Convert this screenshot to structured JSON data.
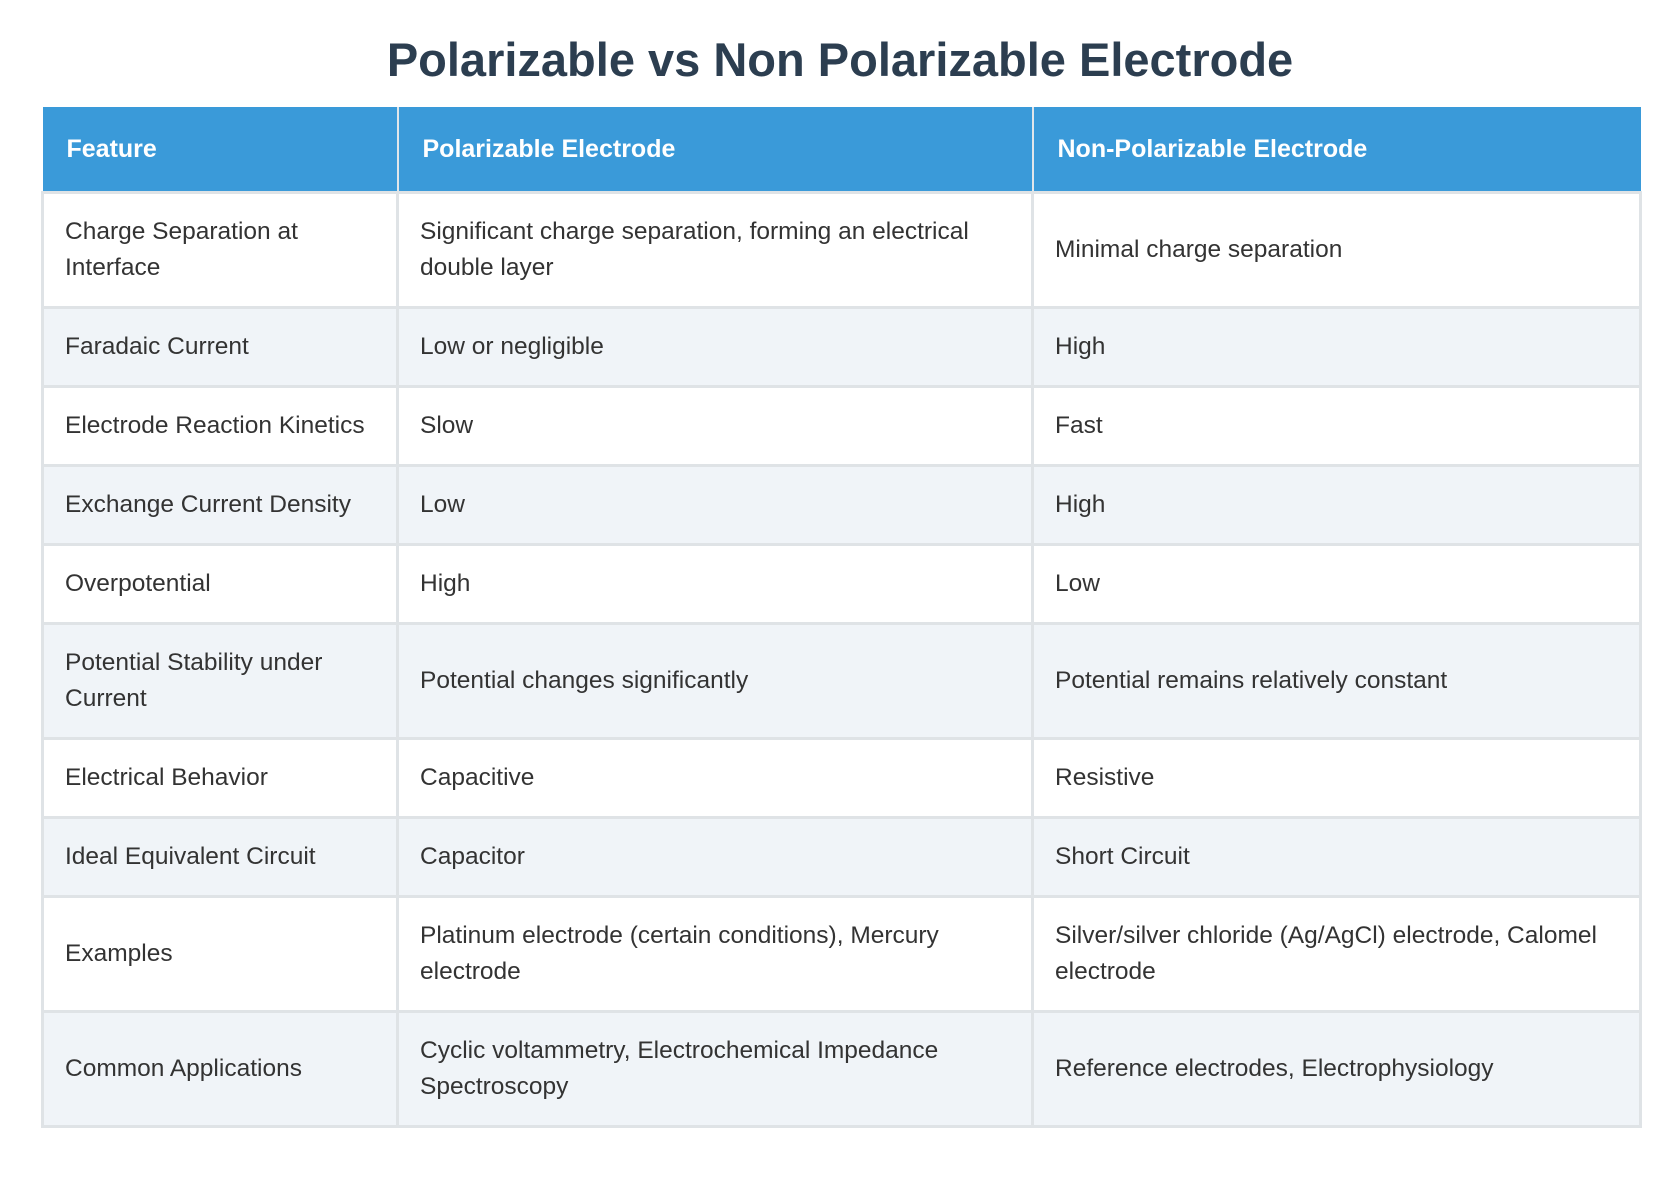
{
  "title": "Polarizable vs Non Polarizable Electrode",
  "table": {
    "headers": [
      "Feature",
      "Polarizable Electrode",
      "Non-Polarizable Electrode"
    ],
    "rows": [
      [
        "Charge Separation at Interface",
        "Significant charge separation, forming an electrical double layer",
        "Minimal charge separation"
      ],
      [
        "Faradaic Current",
        "Low or negligible",
        "High"
      ],
      [
        "Electrode Reaction Kinetics",
        "Slow",
        "Fast"
      ],
      [
        "Exchange Current Density",
        "Low",
        "High"
      ],
      [
        "Overpotential",
        "High",
        "Low"
      ],
      [
        "Potential Stability under Current",
        "Potential changes significantly",
        "Potential remains relatively constant"
      ],
      [
        "Electrical Behavior",
        "Capacitive",
        "Resistive"
      ],
      [
        "Ideal Equivalent Circuit",
        "Capacitor",
        "Short Circuit"
      ],
      [
        "Examples",
        "Platinum electrode (certain conditions), Mercury electrode",
        "Silver/silver chloride (Ag/AgCl) electrode, Calomel electrode"
      ],
      [
        "Common Applications",
        "Cyclic voltammetry, Electrochemical Impedance Spectroscopy",
        "Reference electrodes, Electrophysiology"
      ]
    ]
  }
}
